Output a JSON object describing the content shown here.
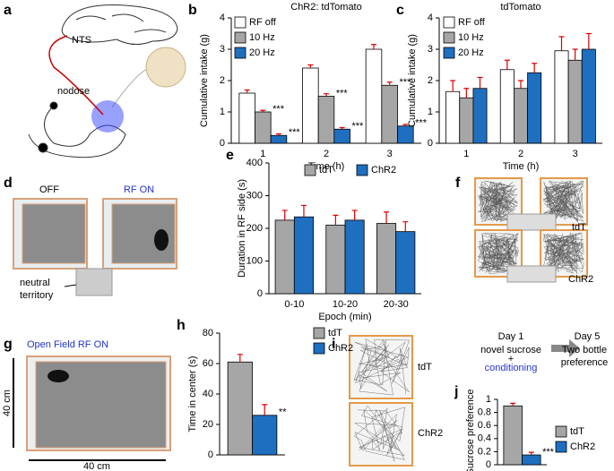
{
  "chart_data": [
    {
      "type": "bar",
      "letter": "b",
      "title": "ChR2: tdTomato",
      "categories": [
        "1",
        "2",
        "3"
      ],
      "series": [
        {
          "name": "RF off",
          "color": "#ffffff",
          "values": [
            1.6,
            2.4,
            3.0
          ],
          "errors": [
            0.1,
            0.1,
            0.15
          ]
        },
        {
          "name": "10 Hz",
          "color": "#a6a6a6",
          "values": [
            1.0,
            1.5,
            1.85
          ],
          "errors": [
            0.05,
            0.08,
            0.1
          ]
        },
        {
          "name": "20 Hz",
          "color": "#1f6fc0",
          "values": [
            0.25,
            0.45,
            0.55
          ],
          "errors": [
            0.05,
            0.05,
            0.05
          ]
        }
      ],
      "ylim": [
        0,
        4
      ],
      "yticks": [
        0,
        1,
        2,
        3,
        4
      ],
      "ylabel": "Cumulative intake (g)",
      "xlabel": "Time (h)",
      "annotations": [
        "***",
        "***",
        "***",
        "***",
        "***",
        "***"
      ]
    },
    {
      "type": "bar",
      "letter": "c",
      "title": "tdTomato",
      "categories": [
        "1",
        "2",
        "3"
      ],
      "series": [
        {
          "name": "RF off",
          "color": "#ffffff",
          "values": [
            1.65,
            2.35,
            2.95
          ],
          "errors": [
            0.35,
            0.3,
            0.45
          ]
        },
        {
          "name": "10 Hz",
          "color": "#a6a6a6",
          "values": [
            1.45,
            1.75,
            2.65
          ],
          "errors": [
            0.3,
            0.25,
            0.35
          ]
        },
        {
          "name": "20 Hz",
          "color": "#1f6fc0",
          "values": [
            1.75,
            2.25,
            3.0
          ],
          "errors": [
            0.35,
            0.3,
            0.5
          ]
        }
      ],
      "ylim": [
        0,
        4
      ],
      "yticks": [
        0,
        1,
        2,
        3,
        4
      ],
      "ylabel": "Cumulative intake (g)",
      "xlabel": "Time (h)"
    },
    {
      "type": "bar",
      "letter": "e",
      "categories": [
        "0-10",
        "10-20",
        "20-30"
      ],
      "series": [
        {
          "name": "tdT",
          "color": "#a6a6a6",
          "values": [
            225,
            210,
            215
          ],
          "errors": [
            30,
            30,
            35
          ]
        },
        {
          "name": "ChR2",
          "color": "#1f6fc0",
          "values": [
            235,
            225,
            190
          ],
          "errors": [
            35,
            30,
            30
          ]
        }
      ],
      "ylim": [
        0,
        400
      ],
      "yticks": [
        0,
        100,
        200,
        300,
        400
      ],
      "ylabel": "Duration in RF side (s)",
      "xlabel": "Epoch (min)"
    },
    {
      "type": "bar",
      "letter": "h",
      "categories": [
        null
      ],
      "series": [
        {
          "name": "tdT",
          "color": "#a6a6a6",
          "values": [
            61
          ],
          "errors": [
            5
          ]
        },
        {
          "name": "ChR2",
          "color": "#1f6fc0",
          "values": [
            26
          ],
          "errors": [
            7
          ]
        }
      ],
      "ylim": [
        0,
        80
      ],
      "yticks": [
        0,
        20,
        40,
        60,
        80
      ],
      "ylabel": "Time in center (s)",
      "annotations": [
        "**"
      ]
    },
    {
      "type": "bar",
      "letter": "j",
      "categories": [
        null
      ],
      "series": [
        {
          "name": "tdT",
          "color": "#a6a6a6",
          "values": [
            0.9
          ],
          "errors": [
            0.04
          ]
        },
        {
          "name": "ChR2",
          "color": "#1f6fc0",
          "values": [
            0.15
          ],
          "errors": [
            0.04
          ]
        }
      ],
      "ylim": [
        0,
        1
      ],
      "yticks": [
        0,
        0.2,
        0.4,
        0.6,
        0.8,
        1
      ],
      "ylabel": "Sucrose preference",
      "annotations": [
        "***"
      ]
    }
  ],
  "panels": {
    "a": {
      "letter": "a",
      "nts": "NTS",
      "nodose": "nodose"
    },
    "d": {
      "letter": "d",
      "off": "OFF",
      "on": "RF ON",
      "neutral": [
        "neutral",
        "territory"
      ]
    },
    "f": {
      "letter": "f",
      "top": "tdT",
      "bottom": "ChR2"
    },
    "g": {
      "letter": "g",
      "title": "Open Field RF ON",
      "height": "40 cm",
      "width": "40 cm"
    },
    "i": {
      "letter": "i",
      "top": "tdT",
      "bottom": "ChR2"
    },
    "j": {
      "day1": "Day 1",
      "novel": "novel sucrose",
      "plus": "+",
      "conditioning": "conditioning",
      "day5": "Day 5",
      "two": "Two bottle",
      "pref": "preference"
    }
  }
}
